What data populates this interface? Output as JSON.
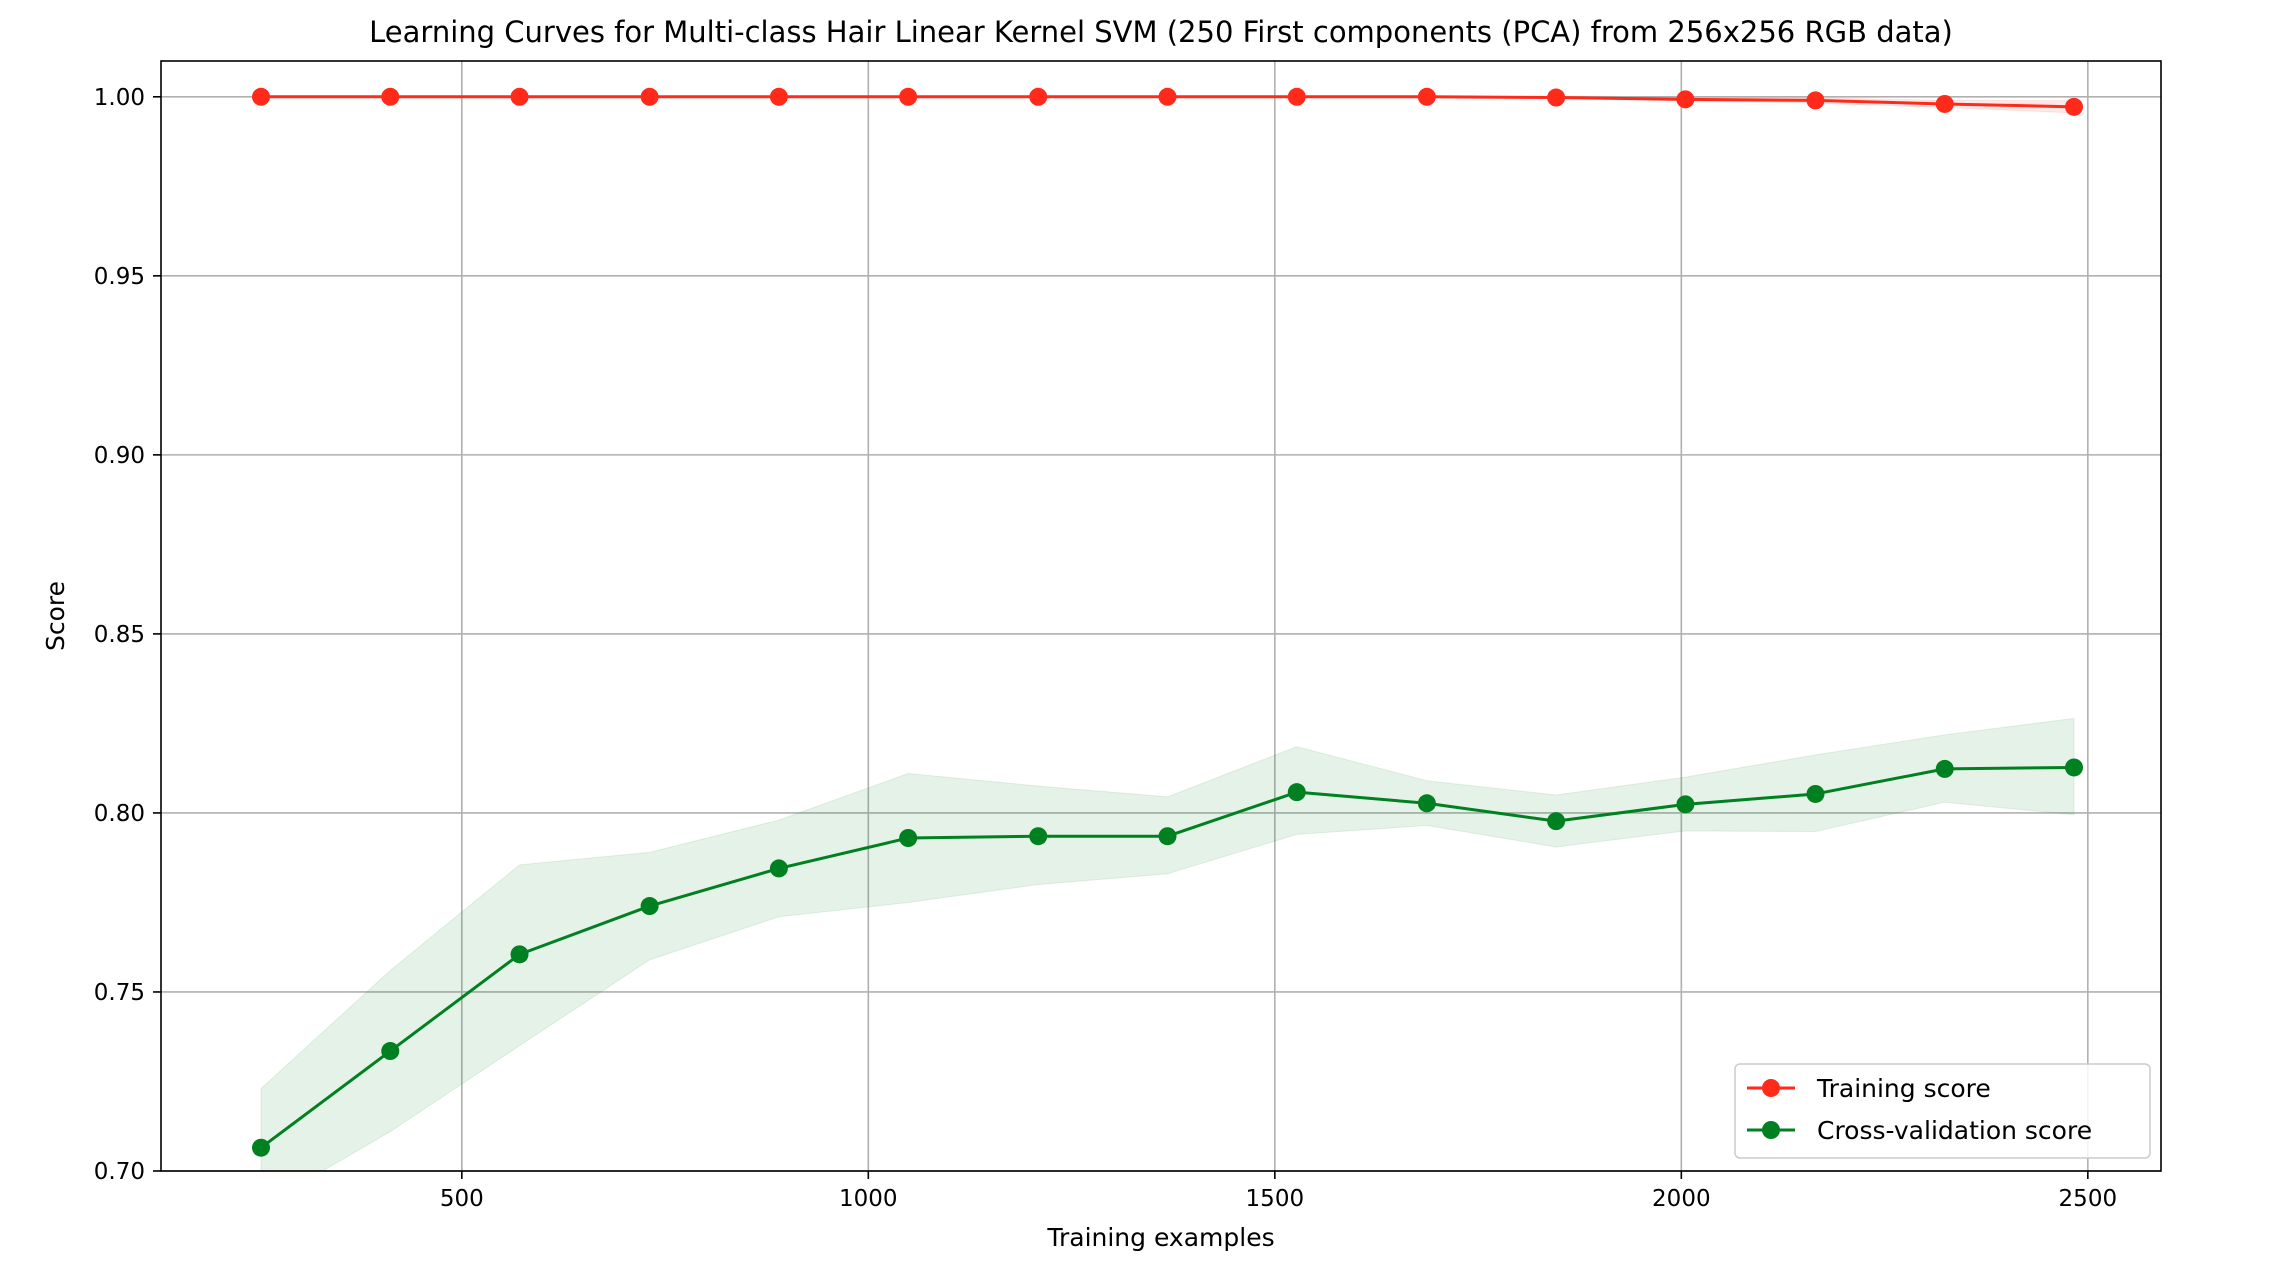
{
  "chart_data": {
    "type": "line",
    "title": "Learning Curves for Multi-class Hair Linear Kernel SVM (250 First components (PCA) from 256x256 RGB data)",
    "xlabel": "Training examples",
    "ylabel": "Score",
    "xlim": [
      130,
      2590
    ],
    "ylim": [
      0.7,
      1.01
    ],
    "xticks": [
      500,
      1000,
      1500,
      2000,
      2500
    ],
    "yticks": [
      0.7,
      0.75,
      0.8,
      0.85,
      0.9,
      0.95,
      1.0
    ],
    "xtick_labels": [
      "500",
      "1000",
      "1500",
      "2000",
      "2500"
    ],
    "ytick_labels": [
      "0.70",
      "0.75",
      "0.80",
      "0.85",
      "0.90",
      "0.95",
      "1.00"
    ],
    "grid": true,
    "legend_position": "lower-right",
    "x": [
      253,
      412,
      571,
      731,
      890,
      1049,
      1209,
      1368,
      1527,
      1687,
      1846,
      2005,
      2165,
      2324,
      2483
    ],
    "series": [
      {
        "name": "Training score",
        "color": "#ff2a1a",
        "band_color": "#ff2a1a",
        "values": [
          1.0,
          1.0,
          1.0,
          1.0,
          1.0,
          1.0,
          1.0,
          1.0,
          1.0,
          1.0,
          0.9998,
          0.9993,
          0.999,
          0.998,
          0.9972
        ],
        "band_lower": [
          1.0,
          1.0,
          1.0,
          1.0,
          1.0,
          1.0,
          1.0,
          1.0,
          1.0,
          1.0,
          0.9996,
          0.9988,
          0.9983,
          0.997,
          0.9955
        ],
        "band_upper": [
          1.0,
          1.0,
          1.0,
          1.0,
          1.0,
          1.0,
          1.0,
          1.0,
          1.0,
          1.0,
          1.0,
          0.9998,
          0.9997,
          0.999,
          0.9989
        ]
      },
      {
        "name": "Cross-validation score",
        "color": "#008020",
        "band_color": "#008020",
        "values": [
          0.7065,
          0.7335,
          0.7605,
          0.774,
          0.7845,
          0.793,
          0.7935,
          0.7935,
          0.8058,
          0.8027,
          0.7977,
          0.8024,
          0.8053,
          0.8123,
          0.8127
        ],
        "band_lower": [
          0.69,
          0.711,
          0.735,
          0.759,
          0.771,
          0.775,
          0.78,
          0.783,
          0.794,
          0.7965,
          0.7905,
          0.795,
          0.7948,
          0.803,
          0.7995
        ],
        "band_upper": [
          0.723,
          0.756,
          0.7855,
          0.789,
          0.798,
          0.811,
          0.8075,
          0.8045,
          0.8185,
          0.809,
          0.805,
          0.81,
          0.8162,
          0.8218,
          0.8264
        ]
      }
    ]
  }
}
